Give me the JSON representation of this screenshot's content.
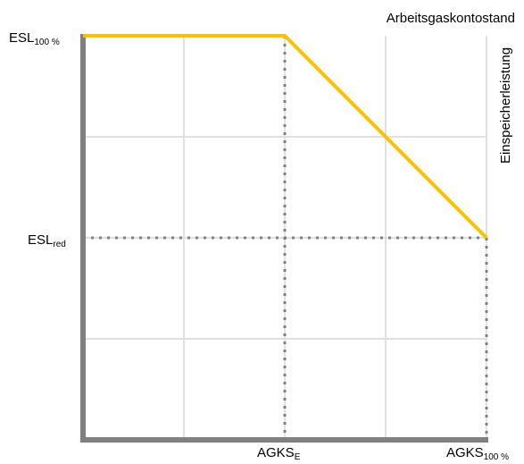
{
  "title": "Arbeitsgaskontostand",
  "y_axis_title": "Einspeicherleistung",
  "labels": {
    "esl_100": {
      "main": "ESL",
      "sub": "100 %"
    },
    "esl_red": {
      "main": "ESL",
      "sub": "red"
    },
    "agks_e": {
      "main": "AGKS",
      "sub": "E"
    },
    "agks_100": {
      "main": "AGKS",
      "sub": "100 %"
    }
  },
  "colors": {
    "curve": "#FFC000",
    "axis": "#808080",
    "grid": "#E0E0E0",
    "reference": "#808080"
  },
  "chart_data": {
    "type": "line",
    "title": "Arbeitsgaskontostand",
    "ylabel": "Einspeicherleistung",
    "x_ticks": [
      "AGKS_E",
      "AGKS_100 %"
    ],
    "y_ticks": [
      "ESL_100 %",
      "ESL_red"
    ],
    "xlim": [
      0,
      4
    ],
    "ylim": [
      0,
      4
    ],
    "grid": true,
    "series": [
      {
        "points": [
          {
            "x": 0,
            "y": 4
          },
          {
            "x": 2,
            "y": 4
          },
          {
            "x": 4,
            "y": 2
          }
        ]
      }
    ],
    "reference_lines": [
      {
        "orientation": "horizontal",
        "value": 2
      },
      {
        "orientation": "vertical",
        "value": 2
      },
      {
        "orientation": "vertical",
        "value": 4
      }
    ]
  }
}
